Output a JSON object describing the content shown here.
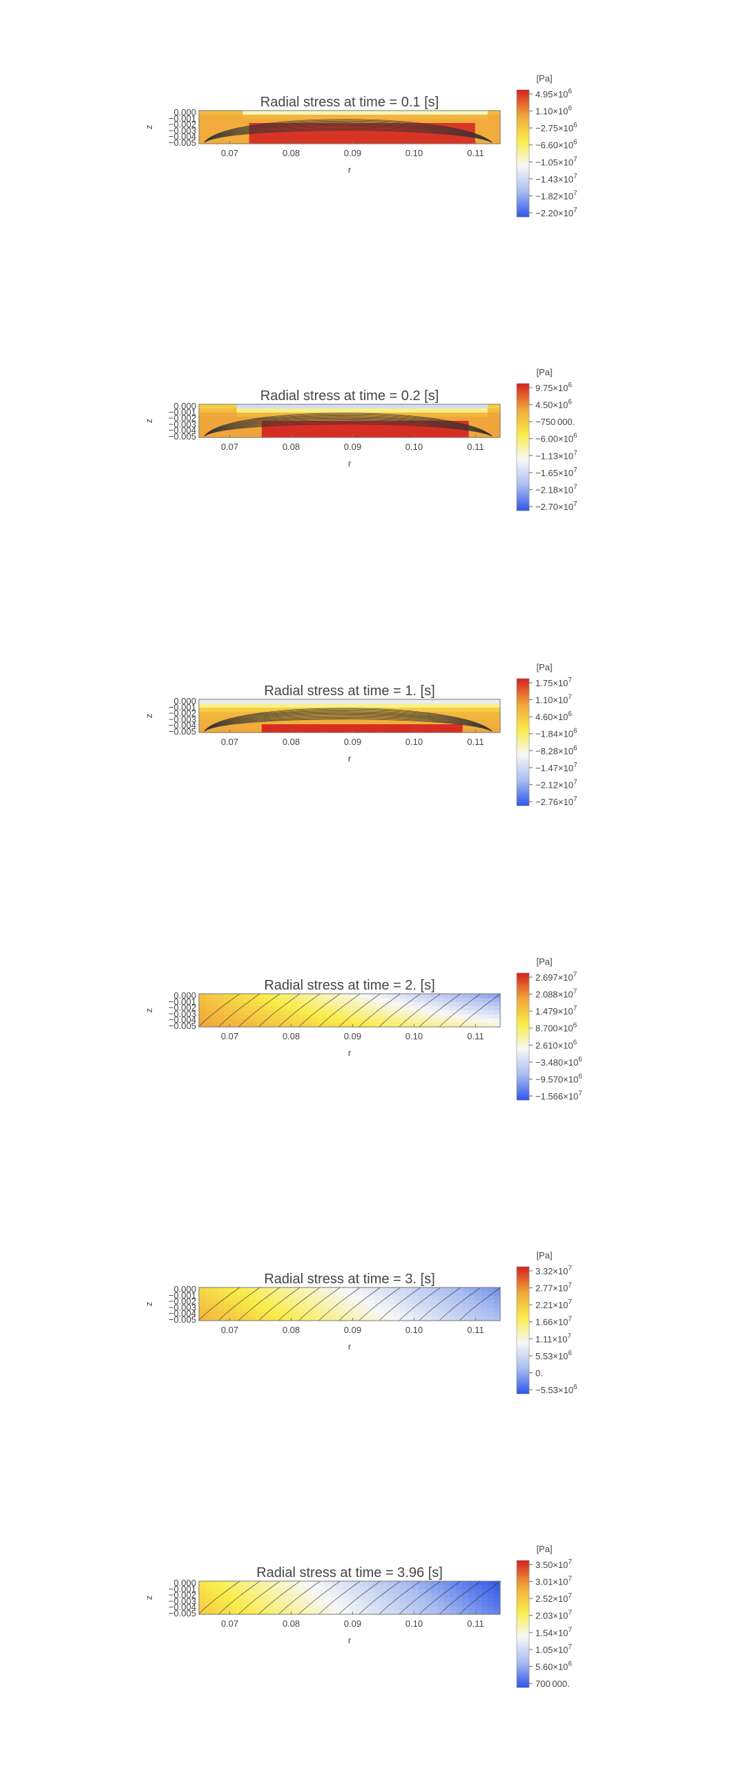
{
  "chart_data": [
    {
      "type": "heatmap",
      "title": "Radial stress at time = 0.1 [s]",
      "xlabel": "r",
      "ylabel": "z",
      "xlim": [
        0.065,
        0.114
      ],
      "ylim": [
        -0.0055,
        0.0
      ],
      "x_ticks": [
        "0.07",
        "0.08",
        "0.09",
        "0.10",
        "0.11"
      ],
      "y_ticks": [
        "0.000",
        "−0.001",
        "−0.002",
        "−0.003",
        "−0.004",
        "−0.005"
      ],
      "colorbar_unit": "[Pa]",
      "colorbar_ticks": [
        {
          "mant": "4.95",
          "exp": "6"
        },
        {
          "mant": "1.10",
          "exp": "6"
        },
        {
          "mant": "−2.75",
          "exp": "6"
        },
        {
          "mant": "−6.60",
          "exp": "6"
        },
        {
          "mant": "−1.05",
          "exp": "7"
        },
        {
          "mant": "−1.43",
          "exp": "7"
        },
        {
          "mant": "−1.82",
          "exp": "7"
        },
        {
          "mant": "−2.20",
          "exp": "7"
        }
      ]
    },
    {
      "type": "heatmap",
      "title": "Radial stress at time = 0.2 [s]",
      "xlabel": "r",
      "ylabel": "z",
      "xlim": [
        0.065,
        0.114
      ],
      "ylim": [
        -0.0055,
        0.0
      ],
      "x_ticks": [
        "0.07",
        "0.08",
        "0.09",
        "0.10",
        "0.11"
      ],
      "y_ticks": [
        "0.000",
        "−0.001",
        "−0.002",
        "−0.003",
        "−0.004",
        "−0.005"
      ],
      "colorbar_unit": "[Pa]",
      "colorbar_ticks": [
        {
          "mant": "9.75",
          "exp": "6"
        },
        {
          "mant": "4.50",
          "exp": "6"
        },
        {
          "mant": "−750 000.",
          "exp": ""
        },
        {
          "mant": "−6.00",
          "exp": "6"
        },
        {
          "mant": "−1.13",
          "exp": "7"
        },
        {
          "mant": "−1.65",
          "exp": "7"
        },
        {
          "mant": "−2.18",
          "exp": "7"
        },
        {
          "mant": "−2.70",
          "exp": "7"
        }
      ]
    },
    {
      "type": "heatmap",
      "title": "Radial stress at time = 1. [s]",
      "xlabel": "r",
      "ylabel": "z",
      "xlim": [
        0.065,
        0.114
      ],
      "ylim": [
        -0.0055,
        0.0
      ],
      "x_ticks": [
        "0.07",
        "0.08",
        "0.09",
        "0.10",
        "0.11"
      ],
      "y_ticks": [
        "0.000",
        "−0.001",
        "−0.002",
        "−0.003",
        "−0.004",
        "−0.005"
      ],
      "colorbar_unit": "[Pa]",
      "colorbar_ticks": [
        {
          "mant": "1.75",
          "exp": "7"
        },
        {
          "mant": "1.10",
          "exp": "7"
        },
        {
          "mant": "4.60",
          "exp": "6"
        },
        {
          "mant": "−1.84",
          "exp": "6"
        },
        {
          "mant": "−8.28",
          "exp": "6"
        },
        {
          "mant": "−1.47",
          "exp": "7"
        },
        {
          "mant": "−2.12",
          "exp": "7"
        },
        {
          "mant": "−2.76",
          "exp": "7"
        }
      ]
    },
    {
      "type": "heatmap",
      "title": "Radial stress at time = 2. [s]",
      "xlabel": "r",
      "ylabel": "z",
      "xlim": [
        0.065,
        0.114
      ],
      "ylim": [
        -0.0055,
        0.0
      ],
      "x_ticks": [
        "0.07",
        "0.08",
        "0.09",
        "0.10",
        "0.11"
      ],
      "y_ticks": [
        "0.000",
        "−0.001",
        "−0.002",
        "−0.003",
        "−0.004",
        "−0.005"
      ],
      "colorbar_unit": "[Pa]",
      "colorbar_ticks": [
        {
          "mant": "2.697",
          "exp": "7"
        },
        {
          "mant": "2.088",
          "exp": "7"
        },
        {
          "mant": "1.479",
          "exp": "7"
        },
        {
          "mant": "8.700",
          "exp": "6"
        },
        {
          "mant": "2.610",
          "exp": "6"
        },
        {
          "mant": "−3.480",
          "exp": "6"
        },
        {
          "mant": "−9.570",
          "exp": "6"
        },
        {
          "mant": "−1.566",
          "exp": "7"
        }
      ]
    },
    {
      "type": "heatmap",
      "title": "Radial stress at time = 3. [s]",
      "xlabel": "r",
      "ylabel": "z",
      "xlim": [
        0.065,
        0.114
      ],
      "ylim": [
        -0.0055,
        0.0
      ],
      "x_ticks": [
        "0.07",
        "0.08",
        "0.09",
        "0.10",
        "0.11"
      ],
      "y_ticks": [
        "0.000",
        "−0.001",
        "−0.002",
        "−0.003",
        "−0.004",
        "−0.005"
      ],
      "colorbar_unit": "[Pa]",
      "colorbar_ticks": [
        {
          "mant": "3.32",
          "exp": "7"
        },
        {
          "mant": "2.77",
          "exp": "7"
        },
        {
          "mant": "2.21",
          "exp": "7"
        },
        {
          "mant": "1.66",
          "exp": "7"
        },
        {
          "mant": "1.11",
          "exp": "7"
        },
        {
          "mant": "5.53",
          "exp": "6"
        },
        {
          "mant": "0.",
          "exp": ""
        },
        {
          "mant": "−5.53",
          "exp": "6"
        }
      ]
    },
    {
      "type": "heatmap",
      "title": "Radial stress at time = 3.96 [s]",
      "xlabel": "r",
      "ylabel": "z",
      "xlim": [
        0.065,
        0.114
      ],
      "ylim": [
        -0.0055,
        0.0
      ],
      "x_ticks": [
        "0.07",
        "0.08",
        "0.09",
        "0.10",
        "0.11"
      ],
      "y_ticks": [
        "0.000",
        "−0.001",
        "−0.002",
        "−0.003",
        "−0.004",
        "−0.005"
      ],
      "colorbar_unit": "[Pa]",
      "colorbar_ticks": [
        {
          "mant": "3.50",
          "exp": "7"
        },
        {
          "mant": "3.01",
          "exp": "7"
        },
        {
          "mant": "2.52",
          "exp": "7"
        },
        {
          "mant": "2.03",
          "exp": "7"
        },
        {
          "mant": "1.54",
          "exp": "7"
        },
        {
          "mant": "1.05",
          "exp": "7"
        },
        {
          "mant": "5.60",
          "exp": "6"
        },
        {
          "mant": "700 000.",
          "exp": ""
        }
      ]
    }
  ],
  "colormap": {
    "high": "#d42121",
    "upper": "#f0a53a",
    "mid_warm": "#f9ec4a",
    "neutral": "#f7f7f7",
    "low_mid": "#a9bdf0",
    "low": "#2f56e8",
    "deep": "#1a2f90"
  }
}
